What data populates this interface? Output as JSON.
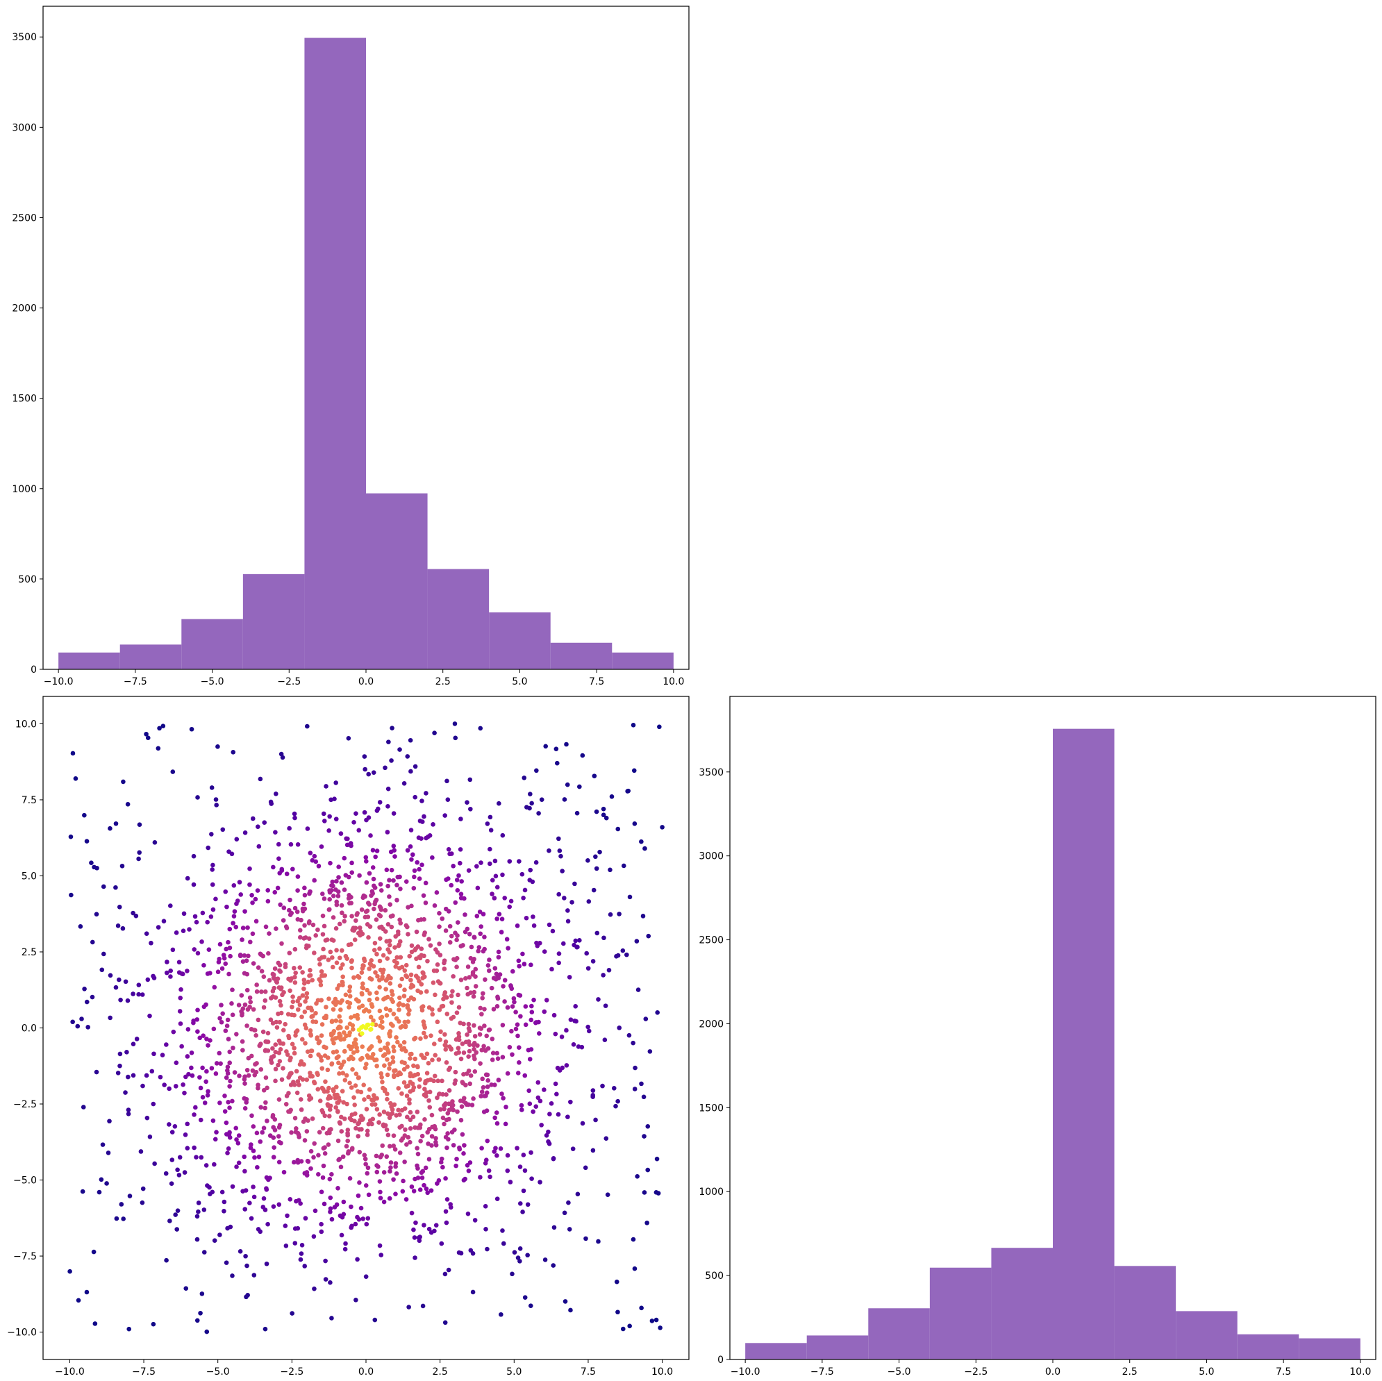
{
  "colors": {
    "histogram_fill": "#9467bd",
    "axes_edge": "#000000",
    "background": "#ffffff",
    "scatter_colormap": [
      "#0d0887",
      "#5302a3",
      "#8b0aa5",
      "#b83289",
      "#db5c68",
      "#f48849",
      "#febd2a",
      "#f0f921"
    ]
  },
  "chart_data": [
    {
      "name": "top-histogram",
      "type": "bar",
      "bin_edges": [
        -10,
        -8,
        -6,
        -4,
        -2,
        0,
        2,
        4,
        6,
        8,
        10
      ],
      "values": [
        93,
        137,
        278,
        527,
        3495,
        974,
        555,
        315,
        147,
        93
      ],
      "xlim": [
        -10.5,
        10.5
      ],
      "ylim": [
        0,
        3670
      ],
      "xticks": [
        -10,
        -7.5,
        -5,
        -2.5,
        0,
        2.5,
        5,
        7.5,
        10
      ],
      "xtick_labels": [
        "−10.0",
        "−7.5",
        "−5.0",
        "−2.5",
        "0.0",
        "2.5",
        "5.0",
        "7.5",
        "10.0"
      ],
      "yticks": [
        0,
        500,
        1000,
        1500,
        2000,
        2500,
        3000,
        3500
      ],
      "ytick_labels": [
        "0",
        "500",
        "1000",
        "1500",
        "2000",
        "2500",
        "3000",
        "3500"
      ],
      "grid": false
    },
    {
      "name": "scatter",
      "type": "scatter",
      "distribution": "points denser and brighter toward (0, 0); colored by density using the plasma colormap",
      "x": [
        0.0,
        0.05,
        -0.1,
        0.15,
        -2.0,
        1.5,
        -1.2,
        2.8,
        3.0,
        -3.4,
        9.9,
        -9.9,
        9.8,
        10.0,
        -9.8,
        -8.0,
        8.9,
        0.3
      ],
      "y": [
        0.0,
        0.1,
        0.05,
        -0.05,
        1.0,
        -1.5,
        2.5,
        -3.0,
        10.0,
        -9.9,
        9.9,
        0.2,
        -9.6,
        6.6,
        8.2,
        -9.9,
        -9.8,
        -9.6
      ],
      "xlim": [
        -10.9,
        10.9
      ],
      "ylim": [
        -10.9,
        10.9
      ],
      "xticks": [
        -10,
        -7.5,
        -5,
        -2.5,
        0,
        2.5,
        5,
        7.5,
        10
      ],
      "xtick_labels": [
        "−10.0",
        "−7.5",
        "−5.0",
        "−2.5",
        "0.0",
        "2.5",
        "5.0",
        "7.5",
        "10.0"
      ],
      "yticks": [
        -10,
        -7.5,
        -5,
        -2.5,
        0,
        2.5,
        5,
        7.5,
        10
      ],
      "ytick_labels": [
        "−10.0",
        "−7.5",
        "−5.0",
        "−2.5",
        "0.0",
        "2.5",
        "5.0",
        "7.5",
        "10.0"
      ],
      "grid": false
    },
    {
      "name": "right-histogram",
      "type": "bar",
      "bin_edges": [
        -10,
        -8,
        -6,
        -4,
        -2,
        0,
        2,
        4,
        6,
        8,
        10
      ],
      "values": [
        98,
        143,
        305,
        547,
        665,
        3757,
        557,
        288,
        150,
        126
      ],
      "xlim": [
        -10.5,
        10.5
      ],
      "ylim": [
        0,
        3950
      ],
      "xticks": [
        -10,
        -7.5,
        -5,
        -2.5,
        0,
        2.5,
        5,
        7.5,
        10
      ],
      "xtick_labels": [
        "−10.0",
        "−7.5",
        "−5.0",
        "−2.5",
        "0.0",
        "2.5",
        "5.0",
        "7.5",
        "10.0"
      ],
      "yticks": [
        0,
        500,
        1000,
        1500,
        2000,
        2500,
        3000,
        3500
      ],
      "ytick_labels": [
        "0",
        "500",
        "1000",
        "1500",
        "2000",
        "2500",
        "3000",
        "3500"
      ],
      "grid": false
    }
  ]
}
